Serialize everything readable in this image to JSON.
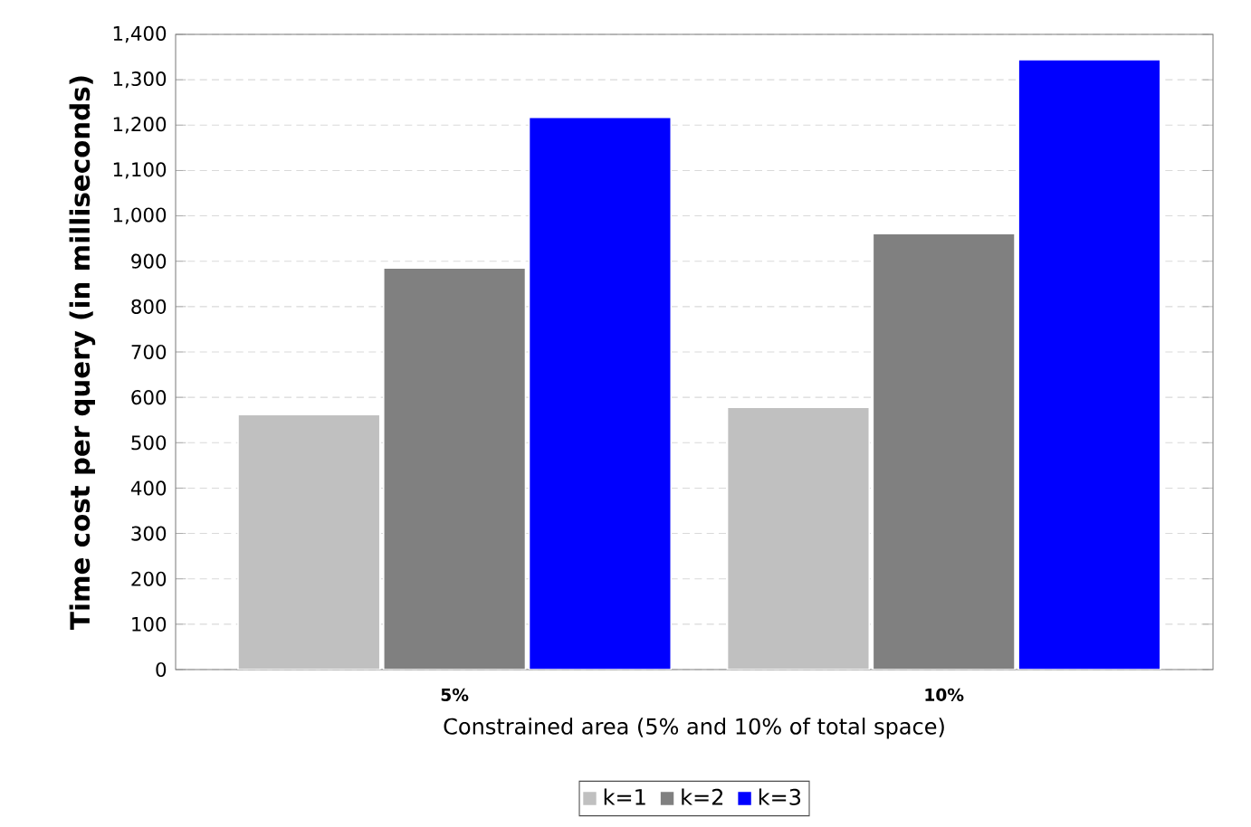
{
  "chart_data": {
    "type": "bar",
    "xlabel": "Constrained area (5% and 10% of total space)",
    "ylabel": "Time cost per query (in milliseconds)",
    "categories": [
      "5%",
      "10%"
    ],
    "series": [
      {
        "name": "k=1",
        "color": "#c0c0c0",
        "values": [
          562,
          578
        ]
      },
      {
        "name": "k=2",
        "color": "#808080",
        "values": [
          885,
          961
        ]
      },
      {
        "name": "k=3",
        "color": "#0000ff",
        "values": [
          1217,
          1344
        ]
      }
    ],
    "ylim": [
      0,
      1400
    ],
    "yticks": [
      0,
      100,
      200,
      300,
      400,
      500,
      600,
      700,
      800,
      900,
      {
        "value": 1000,
        "label": "1,000"
      },
      {
        "value": 1100,
        "label": "1,100"
      },
      {
        "value": 1200,
        "label": "1,200"
      },
      {
        "value": 1300,
        "label": "1,300"
      },
      {
        "value": 1400,
        "label": "1,400"
      }
    ],
    "grid": "y",
    "legend": "bottom"
  }
}
